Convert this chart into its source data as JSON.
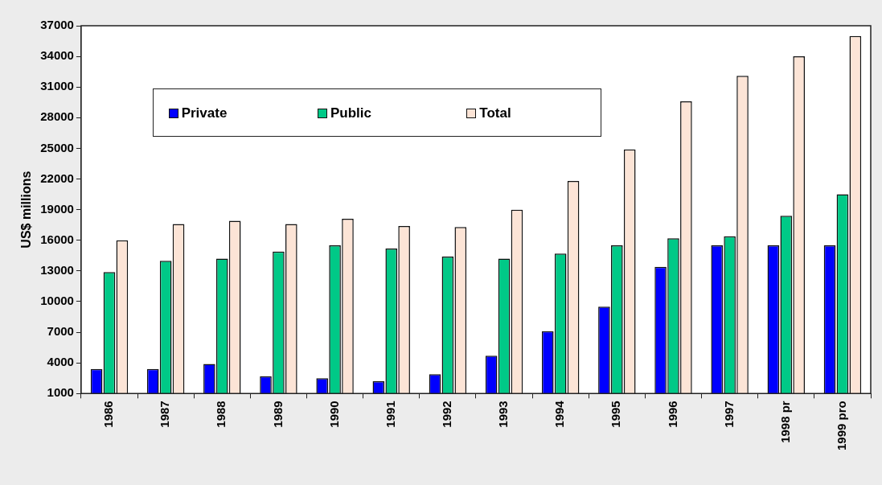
{
  "chart_data": {
    "type": "bar",
    "ylabel": "US$ millions",
    "categories": [
      "1986",
      "1987",
      "1988",
      "1989",
      "1990",
      "1991",
      "1992",
      "1993",
      "1994",
      "1995",
      "1996",
      "1997",
      "1998 pr",
      "1999 pro"
    ],
    "series": [
      {
        "name": "Private",
        "color": "#0000ff",
        "values": [
          3400,
          3400,
          3900,
          2700,
          2500,
          2200,
          2900,
          4700,
          7100,
          9500,
          13400,
          15500,
          15500,
          15500
        ]
      },
      {
        "name": "Public",
        "color": "#00c987",
        "values": [
          12900,
          14000,
          14200,
          14900,
          15500,
          15200,
          14400,
          14200,
          14700,
          15500,
          16200,
          16400,
          18400,
          20500
        ]
      },
      {
        "name": "Total",
        "color": "#fce4d6",
        "values": [
          16000,
          17600,
          17900,
          17600,
          18100,
          17400,
          17300,
          19000,
          21800,
          24900,
          29600,
          32100,
          34000,
          36000
        ]
      }
    ],
    "ylim": [
      1000,
      37000
    ],
    "yticks": [
      1000,
      4000,
      7000,
      10000,
      13000,
      16000,
      19000,
      22000,
      25000,
      28000,
      31000,
      34000,
      37000
    ],
    "grid": false,
    "legend": "top left"
  }
}
